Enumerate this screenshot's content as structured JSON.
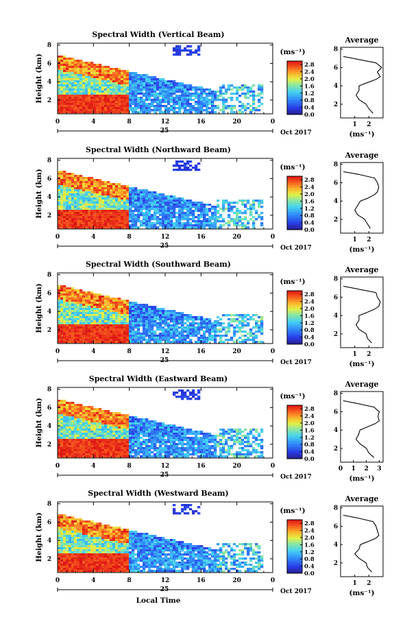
{
  "figure": {
    "x_axis_label": "Local Time",
    "date_label": "Oct 2017",
    "day_label": "25",
    "colorbar_unit": "(ms⁻¹)",
    "profile_title": "Average",
    "profile_xlabel": "(ms⁻¹)"
  },
  "chart_data": [
    {
      "type": "heatmap",
      "title": "Spectral Width (Vertical Beam)",
      "ylabel": "Height (km)",
      "xlabel": "",
      "x_ticks": [
        "0",
        "4",
        "8",
        "12",
        "16",
        "20",
        "0"
      ],
      "xlim": [
        0,
        24
      ],
      "y_ticks": [
        "2",
        "4",
        "6",
        "8"
      ],
      "ylim": [
        0.5,
        8.2
      ],
      "colorbar_ticks": [
        "0.0",
        "0.4",
        "0.8",
        "1.2",
        "1.6",
        "2.0",
        "2.4",
        "2.8"
      ],
      "colorbar_range": [
        0,
        3.0
      ],
      "profile": {
        "title": "Average",
        "x_ticks": [
          "1",
          "2"
        ],
        "xlim": [
          0,
          3
        ],
        "y_ticks": [
          "2",
          "4",
          "6",
          "8"
        ],
        "ylim": [
          0.5,
          8.2
        ],
        "x": [
          2.3,
          2.0,
          1.8,
          1.3,
          1.1,
          1.3,
          1.3,
          1.8,
          2.5,
          2.8,
          2.6,
          2.9,
          2.5,
          1.2,
          0.2
        ],
        "y": [
          1.0,
          1.5,
          2.0,
          2.5,
          3.0,
          3.5,
          4.0,
          4.3,
          4.7,
          5.0,
          5.5,
          6.0,
          6.5,
          6.9,
          7.2
        ]
      }
    },
    {
      "type": "heatmap",
      "title": "Spectral Width (Northward Beam)",
      "ylabel": "Height (km)",
      "xlabel": "",
      "x_ticks": [
        "0",
        "4",
        "8",
        "12",
        "16",
        "20",
        "0"
      ],
      "xlim": [
        0,
        24
      ],
      "y_ticks": [
        "2",
        "4",
        "6",
        "8"
      ],
      "ylim": [
        0.5,
        8.2
      ],
      "colorbar_ticks": [
        "0.0",
        "0.4",
        "0.8",
        "1.2",
        "1.6",
        "2.0",
        "2.4",
        "2.8"
      ],
      "colorbar_range": [
        0,
        3.0
      ],
      "profile": {
        "title": "Average",
        "x_ticks": [
          "1",
          "2"
        ],
        "xlim": [
          0,
          3
        ],
        "y_ticks": [
          "2",
          "4",
          "6",
          "8"
        ],
        "ylim": [
          0.5,
          8.2
        ],
        "x": [
          2.1,
          1.9,
          1.7,
          1.2,
          1.0,
          1.2,
          1.4,
          1.9,
          2.4,
          2.6,
          2.7,
          2.6,
          2.4,
          1.3,
          0.2
        ],
        "y": [
          1.0,
          1.5,
          2.0,
          2.5,
          3.0,
          3.5,
          4.0,
          4.3,
          4.7,
          5.0,
          5.5,
          6.0,
          6.5,
          6.9,
          7.2
        ]
      }
    },
    {
      "type": "heatmap",
      "title": "Spectral Width (Southward Beam)",
      "ylabel": "Height (km)",
      "xlabel": "",
      "x_ticks": [
        "0",
        "4",
        "8",
        "12",
        "16",
        "20",
        "0"
      ],
      "xlim": [
        0,
        24
      ],
      "y_ticks": [
        "2",
        "4",
        "6",
        "8"
      ],
      "ylim": [
        0.5,
        8.2
      ],
      "colorbar_ticks": [
        "0.0",
        "0.4",
        "0.8",
        "1.2",
        "1.6",
        "2.0",
        "2.4",
        "2.8"
      ],
      "colorbar_range": [
        0,
        3.0
      ],
      "profile": {
        "title": "Average",
        "x_ticks": [
          "1",
          "2"
        ],
        "xlim": [
          0,
          3
        ],
        "y_ticks": [
          "2",
          "4",
          "6",
          "8"
        ],
        "ylim": [
          0.5,
          8.2
        ],
        "x": [
          2.2,
          1.9,
          1.8,
          1.3,
          1.1,
          1.3,
          1.3,
          1.8,
          2.4,
          2.7,
          2.8,
          2.6,
          2.5,
          1.2,
          0.2
        ],
        "y": [
          1.0,
          1.5,
          2.0,
          2.5,
          3.0,
          3.5,
          4.0,
          4.3,
          4.7,
          5.0,
          5.5,
          6.0,
          6.5,
          6.9,
          7.2
        ]
      }
    },
    {
      "type": "heatmap",
      "title": "Spectral Width (Eastward Beam)",
      "ylabel": "Height (km)",
      "xlabel": "",
      "x_ticks": [
        "0",
        "4",
        "8",
        "12",
        "16",
        "20",
        "0"
      ],
      "xlim": [
        0,
        24
      ],
      "y_ticks": [
        "2",
        "4",
        "6",
        "8"
      ],
      "ylim": [
        0.5,
        8.2
      ],
      "colorbar_ticks": [
        "0.0",
        "0.4",
        "0.8",
        "1.2",
        "1.6",
        "2.0",
        "2.4",
        "2.8"
      ],
      "colorbar_range": [
        0,
        3.0
      ],
      "profile": {
        "title": "Average",
        "x_ticks": [
          "0",
          "1",
          "2",
          "3"
        ],
        "xlim": [
          0,
          3.3
        ],
        "y_ticks": [
          "2",
          "4",
          "6",
          "8"
        ],
        "ylim": [
          0.5,
          8.2
        ],
        "x": [
          2.6,
          2.2,
          2.0,
          1.5,
          1.2,
          1.4,
          1.5,
          2.0,
          2.7,
          3.0,
          2.9,
          3.0,
          2.6,
          1.3,
          0.2
        ],
        "y": [
          1.0,
          1.5,
          2.0,
          2.5,
          3.0,
          3.5,
          4.0,
          4.3,
          4.7,
          5.0,
          5.5,
          6.0,
          6.5,
          6.9,
          7.2
        ]
      }
    },
    {
      "type": "heatmap",
      "title": "Spectral Width (Westward Beam)",
      "ylabel": "Height (km)",
      "xlabel": "Local Time",
      "x_ticks": [
        "0",
        "4",
        "8",
        "12",
        "16",
        "20",
        "0"
      ],
      "xlim": [
        0,
        24
      ],
      "y_ticks": [
        "2",
        "4",
        "6",
        "8"
      ],
      "ylim": [
        0.5,
        8.2
      ],
      "colorbar_ticks": [
        "0.0",
        "0.4",
        "0.8",
        "1.2",
        "1.6",
        "2.0",
        "2.4",
        "2.8"
      ],
      "colorbar_range": [
        0,
        3.0
      ],
      "profile": {
        "title": "Average",
        "x_ticks": [
          "1",
          "2"
        ],
        "xlim": [
          0,
          3
        ],
        "y_ticks": [
          "2",
          "4",
          "6",
          "8"
        ],
        "ylim": [
          0.5,
          8.2
        ],
        "x": [
          2.2,
          1.9,
          1.8,
          1.3,
          1.0,
          1.3,
          1.4,
          1.9,
          2.5,
          2.7,
          2.6,
          2.5,
          2.3,
          1.2,
          0.2
        ],
        "y": [
          1.0,
          1.5,
          2.0,
          2.5,
          3.0,
          3.5,
          4.0,
          4.3,
          4.7,
          5.0,
          5.5,
          6.0,
          6.5,
          6.9,
          7.2
        ]
      }
    }
  ]
}
